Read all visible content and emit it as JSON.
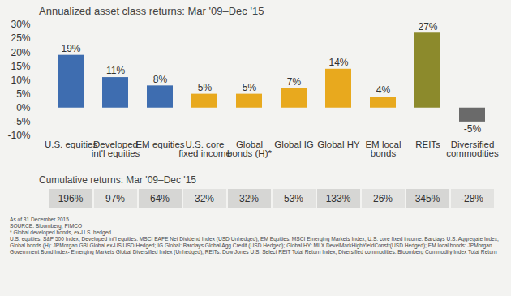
{
  "chart_data": {
    "type": "bar",
    "title": "Annualized asset class returns: Mar '09–Dec '15",
    "categories": [
      "U.S. equities",
      "Developed int'l equities",
      "EM equities",
      "U.S. core fixed income",
      "Global bonds (H)*",
      "Global IG",
      "Global HY",
      "EM local bonds",
      "REITs",
      "Diversified commodities"
    ],
    "values": [
      19,
      11,
      8,
      5,
      5,
      7,
      14,
      4,
      27,
      -5
    ],
    "value_labels": [
      "19%",
      "11%",
      "8%",
      "5%",
      "5%",
      "7%",
      "14%",
      "4%",
      "27%",
      "-5%"
    ],
    "colors": [
      "#3e6db0",
      "#3e6db0",
      "#3e6db0",
      "#e8a91e",
      "#e8a91e",
      "#e8a91e",
      "#e8a91e",
      "#e8a91e",
      "#8c8a2c",
      "#6a6a6a"
    ],
    "ylim": [
      -10,
      30
    ],
    "yticks": [
      {
        "value": -10,
        "label": "-10%"
      },
      {
        "value": -5,
        "label": "-5%"
      },
      {
        "value": 0,
        "label": "0%"
      },
      {
        "value": 5,
        "label": "5%"
      },
      {
        "value": 10,
        "label": "10%"
      },
      {
        "value": 15,
        "label": "15%"
      },
      {
        "value": 20,
        "label": "20%"
      },
      {
        "value": 25,
        "label": "25%"
      },
      {
        "value": 30,
        "label": "30%"
      }
    ],
    "grid": false,
    "data_labels": true
  },
  "cumulative_returns": {
    "title": "Cumulative returns: Mar '09–Dec '15",
    "values": [
      196,
      97,
      64,
      32,
      32,
      53,
      133,
      26,
      345,
      -28
    ],
    "value_labels": [
      "196%",
      "97%",
      "64%",
      "32%",
      "32%",
      "53%",
      "133%",
      "26%",
      "345%",
      "-28%"
    ]
  },
  "footnotes": [
    "As of 31 December 2015",
    "SOURCE: Bloomberg, PIMCO",
    "* Global developed bonds, ex-U.S. hedged",
    "U.S. equities: S&P 500 Index; Developed int'l equities: MSCI EAFE Net Dividend Index (USD Unhedged); EM Equities: MSCI Emerging Markets Index; U.S. core fixed income: Barclays U.S. Aggregate Index; Global bonds (H): JPMorgan GBI Global ex-US USD Hedged; IG Global: Barclays Global Agg Credit (USD Hedged); Global HY: MLX DevelMarkHighYieldConstr(USD Hedged); EM local bonds: JPMorgan Government Bond Index- Emerging Markets Global Diversified Index (Unhedged); REITs: Dow Jones U.S. Select REIT Total Return Index; Diversified commodities: Bloomberg Commodity Index Total Return"
  ]
}
